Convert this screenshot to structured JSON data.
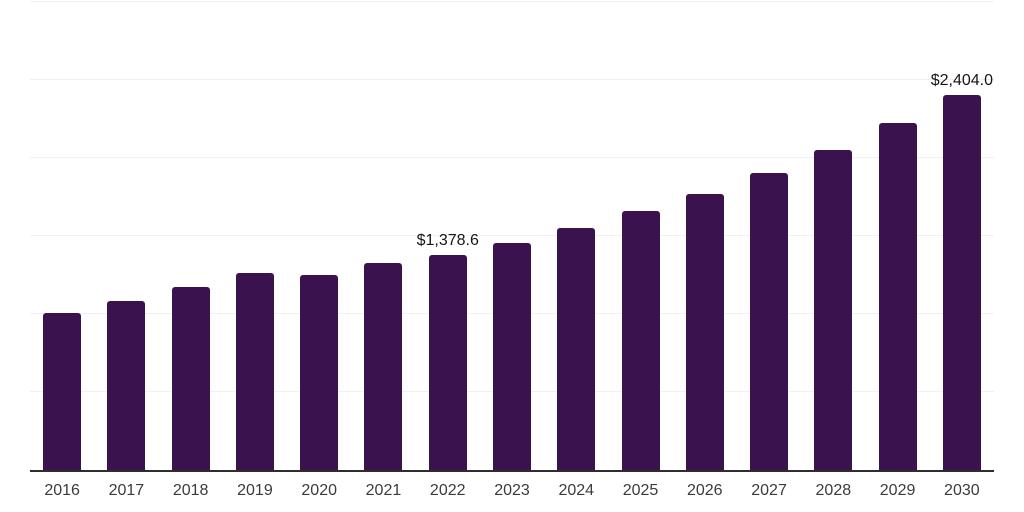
{
  "chart_data": {
    "type": "bar",
    "title": "",
    "xlabel": "",
    "ylabel": "",
    "categories": [
      "2016",
      "2017",
      "2018",
      "2019",
      "2020",
      "2021",
      "2022",
      "2023",
      "2024",
      "2025",
      "2026",
      "2027",
      "2028",
      "2029",
      "2030"
    ],
    "values": [
      1005,
      1083,
      1176,
      1261,
      1252,
      1329,
      1378.6,
      1457,
      1550,
      1660,
      1770,
      1904,
      2052,
      2223,
      2404.0
    ],
    "value_labels": [
      {
        "category": "2022",
        "text": "$1,378.6"
      },
      {
        "category": "2030",
        "text": "$2,404.0"
      }
    ],
    "ylim": [
      0,
      3000
    ],
    "gridline_step": 500,
    "grid": true,
    "y_axis_tick_labels_visible": false,
    "legend": false
  },
  "style": {
    "bar_color": "#3A124E",
    "axis_line_color": "#2E2E2E",
    "gridline_color": "#EFF0F3",
    "tick_label_color": "#3B3B3B",
    "value_label_color": "#161616",
    "background_color": "#FFFFFF"
  }
}
